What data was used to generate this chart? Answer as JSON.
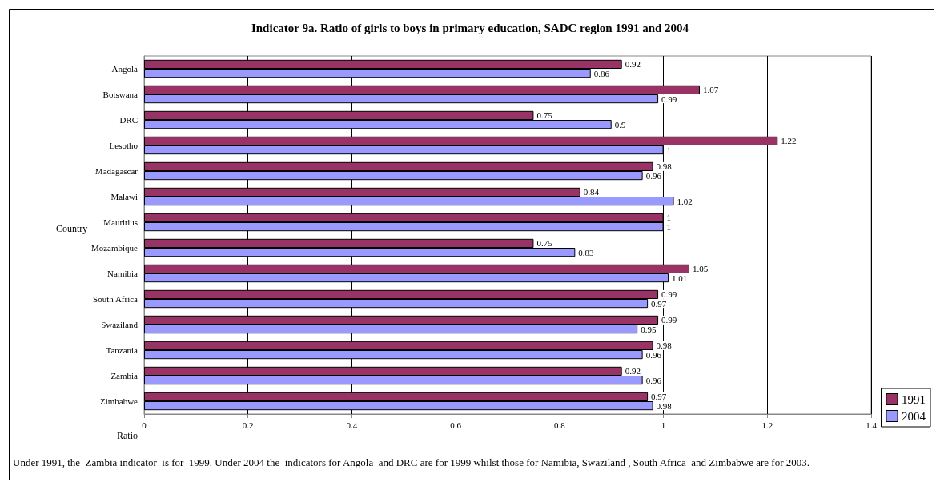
{
  "chart_data": {
    "type": "bar",
    "orientation": "horizontal",
    "title": "Indicator 9a. Ratio of girls to boys in primary education, SADC region 1991 and 2004",
    "ylabel": "Country",
    "xlabel": "Ratio",
    "categories": [
      "Angola",
      "Botswana",
      "DRC",
      "Lesotho",
      "Madagascar",
      "Malawi",
      "Mauritius",
      "Mozambique",
      "Namibia",
      "South Africa",
      "Swaziland",
      "Tanzania",
      "Zambia",
      "Zimbabwe"
    ],
    "series": [
      {
        "name": "1991",
        "color": "#993366",
        "values": [
          0.92,
          1.07,
          0.75,
          1.22,
          0.98,
          0.84,
          1,
          0.75,
          1.05,
          0.99,
          0.99,
          0.98,
          0.92,
          0.97
        ]
      },
      {
        "name": "2004",
        "color": "#9999ff",
        "values": [
          0.86,
          0.99,
          0.9,
          1,
          0.96,
          1.02,
          1,
          0.83,
          1.01,
          0.97,
          0.95,
          0.96,
          0.96,
          0.98
        ]
      }
    ],
    "xlim": [
      0,
      1.4
    ],
    "xticks": [
      0,
      0.2,
      0.4,
      0.6,
      0.8,
      1,
      1.2,
      1.4
    ],
    "grid": "x",
    "legend": "right",
    "data_labels": true,
    "annotations": [
      "Under 1991, the  Zambia indicator  is for  1999. Under 2004 the  indicators for Angola  and DRC are for 1999 whilst those for Namibia, Swaziland , South Africa  and Zimbabwe are for 2003."
    ]
  }
}
